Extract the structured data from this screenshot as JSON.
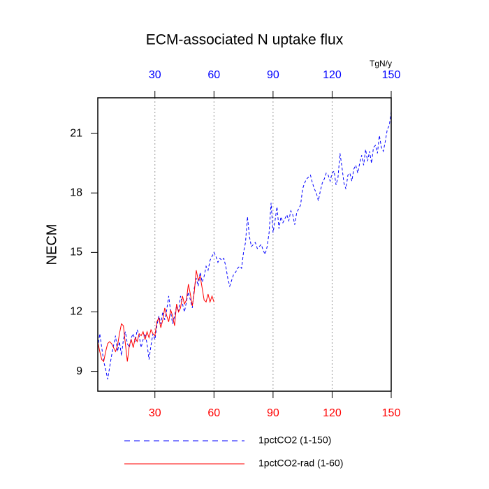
{
  "chart_data": {
    "type": "line",
    "title": "ECM-associated N uptake flux",
    "y_label": "NECM",
    "units": "TgN/y",
    "xlim": [
      1,
      150
    ],
    "xticks": [
      30,
      60,
      90,
      120,
      150
    ],
    "ylim": [
      8,
      22.8
    ],
    "yticks": [
      9,
      12,
      15,
      18,
      21
    ],
    "grid": true,
    "top_axis_color": "#0000ff",
    "bottom_axis_color": "#ff0000",
    "series": [
      {
        "name": "1pctCO2 (1-150)",
        "color": "#0000ff",
        "dash": true,
        "x": [
          1,
          2,
          3,
          4,
          5,
          6,
          7,
          8,
          9,
          10,
          11,
          12,
          13,
          14,
          15,
          16,
          17,
          18,
          19,
          20,
          21,
          22,
          23,
          24,
          25,
          26,
          27,
          28,
          29,
          30,
          31,
          32,
          33,
          34,
          35,
          36,
          37,
          38,
          39,
          40,
          41,
          42,
          43,
          44,
          45,
          46,
          47,
          48,
          49,
          50,
          51,
          52,
          53,
          54,
          55,
          56,
          57,
          58,
          59,
          60,
          61,
          62,
          63,
          64,
          65,
          66,
          67,
          68,
          69,
          70,
          71,
          72,
          73,
          74,
          75,
          76,
          77,
          78,
          79,
          80,
          81,
          82,
          83,
          84,
          85,
          86,
          87,
          88,
          89,
          90,
          91,
          92,
          93,
          94,
          95,
          96,
          97,
          98,
          99,
          100,
          101,
          102,
          103,
          104,
          105,
          106,
          107,
          108,
          109,
          110,
          111,
          112,
          113,
          114,
          115,
          116,
          117,
          118,
          119,
          120,
          121,
          122,
          123,
          124,
          125,
          126,
          127,
          128,
          129,
          130,
          131,
          132,
          133,
          134,
          135,
          136,
          137,
          138,
          139,
          140,
          141,
          142,
          143,
          144,
          145,
          146,
          147,
          148,
          149,
          150
        ],
        "values": [
          10.2,
          10.9,
          10.2,
          9.5,
          9.1,
          8.6,
          9.2,
          9.8,
          10.3,
          10.8,
          10.0,
          10.5,
          9.8,
          10.6,
          11.0,
          10.4,
          10.2,
          10.7,
          10.9,
          10.5,
          11.1,
          10.8,
          10.2,
          10.6,
          10.9,
          10.4,
          9.6,
          10.3,
          10.9,
          10.6,
          11.3,
          11.8,
          11.4,
          12.0,
          11.6,
          12.1,
          12.8,
          12.0,
          11.4,
          11.8,
          12.3,
          12.0,
          12.8,
          12.4,
          12.0,
          12.5,
          13.0,
          12.6,
          12.2,
          13.2,
          13.7,
          13.3,
          14.0,
          13.5,
          13.8,
          14.3,
          14.1,
          14.6,
          14.8,
          15.0,
          14.8,
          14.5,
          14.7,
          14.6,
          14.7,
          14.3,
          13.7,
          13.3,
          13.6,
          13.9,
          14.0,
          14.2,
          14.3,
          14.2,
          15.0,
          15.5,
          16.8,
          15.8,
          15.3,
          15.4,
          15.5,
          15.2,
          15.3,
          15.4,
          15.1,
          14.9,
          15.3,
          16.0,
          17.5,
          16.0,
          16.6,
          17.3,
          16.2,
          16.8,
          16.5,
          16.7,
          16.9,
          16.6,
          17.1,
          16.9,
          16.4,
          17.0,
          17.2,
          17.4,
          18.2,
          18.5,
          18.7,
          18.8,
          18.9,
          18.5,
          18.2,
          18.0,
          17.6,
          18.1,
          18.5,
          18.7,
          19.0,
          18.9,
          18.6,
          19.0,
          19.1,
          18.4,
          18.8,
          20.0,
          19.3,
          18.5,
          18.2,
          18.9,
          19.0,
          18.6,
          19.2,
          19.4,
          19.0,
          19.5,
          19.9,
          19.4,
          20.2,
          19.6,
          20.1,
          19.5,
          20.3,
          20.4,
          20.0,
          20.9,
          20.3,
          20.1,
          20.6,
          21.2,
          21.4,
          22.1
        ]
      },
      {
        "name": "1pctCO2-rad (1-60)",
        "color": "#ff0000",
        "dash": false,
        "x": [
          1,
          2,
          3,
          4,
          5,
          6,
          7,
          8,
          9,
          10,
          11,
          12,
          13,
          14,
          15,
          16,
          17,
          18,
          19,
          20,
          21,
          22,
          23,
          24,
          25,
          26,
          27,
          28,
          29,
          30,
          31,
          32,
          33,
          34,
          35,
          36,
          37,
          38,
          39,
          40,
          41,
          42,
          43,
          44,
          45,
          46,
          47,
          48,
          49,
          50,
          51,
          52,
          53,
          54,
          55,
          56,
          57,
          58,
          59,
          60
        ],
        "values": [
          10.5,
          10.0,
          9.6,
          9.5,
          10.0,
          10.4,
          10.5,
          10.4,
          10.2,
          10.0,
          10.3,
          10.9,
          11.4,
          11.3,
          10.4,
          9.5,
          10.3,
          10.6,
          10.2,
          10.7,
          10.5,
          10.9,
          10.8,
          11.0,
          10.6,
          11.0,
          10.7,
          11.1,
          10.9,
          10.8,
          11.5,
          11.7,
          11.2,
          11.6,
          12.2,
          11.8,
          11.5,
          12.1,
          11.8,
          11.3,
          12.4,
          12.0,
          12.2,
          12.8,
          12.4,
          12.6,
          13.4,
          12.9,
          12.3,
          13.0,
          14.1,
          13.6,
          13.8,
          13.2,
          12.6,
          12.5,
          12.9,
          12.5,
          12.8,
          12.5
        ]
      }
    ]
  }
}
